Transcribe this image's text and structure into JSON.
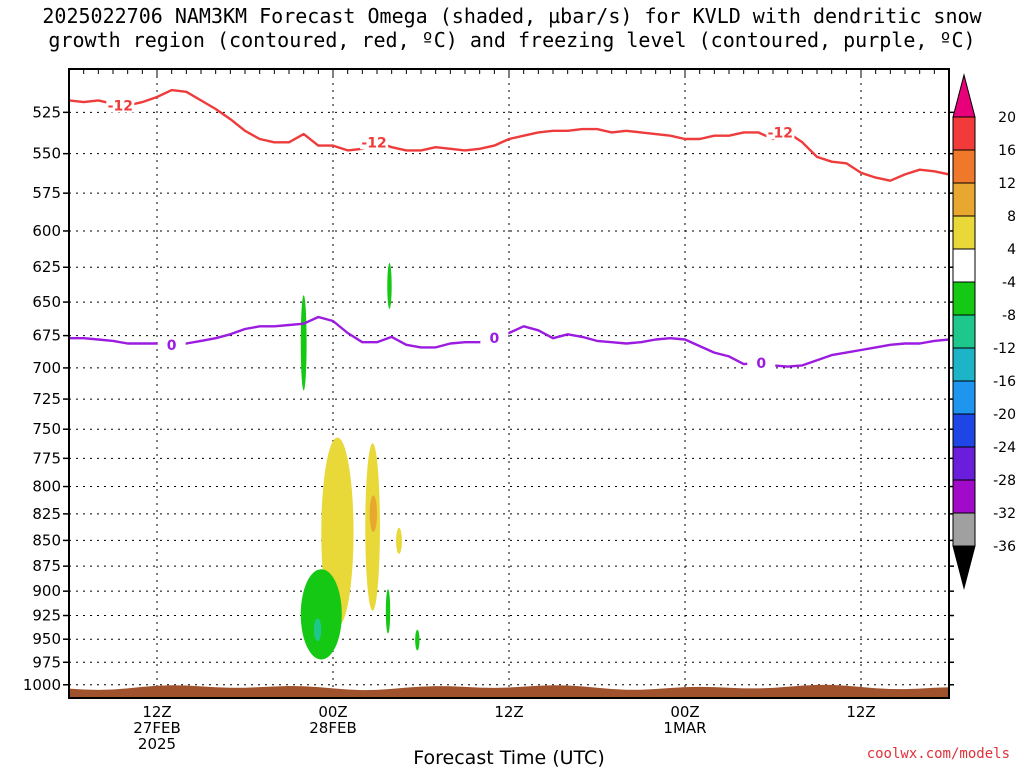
{
  "title": {
    "line1": "2025022706 NAM3KM Forecast Omega (shaded, µbar/s) for KVLD with dendritic snow",
    "line2": "growth region (contoured, red, ºC) and freezing level (contoured, purple, ºC)"
  },
  "credit": "coolwx.com/models",
  "chart_data": {
    "type": "heatmap",
    "title": "2025022706 NAM3KM Forecast Omega (shaded, µbar/s) for KVLD with dendritic snow growth region (contoured, red, ºC) and freezing level (contoured, purple, ºC)",
    "xlabel": "Forecast Time (UTC)",
    "ylabel": "",
    "x_range_hours": [
      0,
      60
    ],
    "x_ticks": [
      {
        "hour": 6,
        "label": [
          "12Z",
          "27FEB",
          "2025"
        ]
      },
      {
        "hour": 18,
        "label": [
          "00Z",
          "28FEB"
        ]
      },
      {
        "hour": 30,
        "label": [
          "12Z"
        ]
      },
      {
        "hour": 42,
        "label": [
          "00Z",
          "1MAR"
        ]
      },
      {
        "hour": 54,
        "label": [
          "12Z"
        ]
      }
    ],
    "y_axis": {
      "scale": "log",
      "inverted": true,
      "range_mb": [
        500,
        1015
      ]
    },
    "y_ticks": [
      525,
      550,
      575,
      600,
      625,
      650,
      675,
      700,
      725,
      750,
      775,
      800,
      825,
      850,
      875,
      900,
      925,
      950,
      975,
      1000
    ],
    "colorbar": {
      "labels": [
        "20",
        "16",
        "12",
        "8",
        "4",
        "-4",
        "-8",
        "-12",
        "-16",
        "-20",
        "-24",
        "-28",
        "-32",
        "-36"
      ],
      "colors": [
        "#e8007a",
        "#f23a3a",
        "#f0782a",
        "#e8a830",
        "#e8d838",
        "#ffffff",
        "#14c814",
        "#1ec88c",
        "#1eb4c8",
        "#1e96f0",
        "#1e46e6",
        "#6a1edc",
        "#a00ac8",
        "#a0a0a0",
        "#000000"
      ]
    },
    "series": [
      {
        "name": "-12",
        "color": "#ee3b3b",
        "hours": [
          0,
          1,
          2,
          3,
          4,
          5,
          6,
          7,
          8,
          9,
          10,
          11,
          12,
          13,
          14,
          15,
          16,
          17,
          18,
          19,
          20,
          21,
          22,
          23,
          24,
          25,
          26,
          27,
          28,
          29,
          30,
          31,
          32,
          33,
          34,
          35,
          36,
          37,
          38,
          39,
          40,
          41,
          42,
          43,
          44,
          45,
          46,
          47,
          48,
          49,
          50,
          51,
          52,
          53,
          54,
          55,
          56,
          57,
          58,
          59,
          60
        ],
        "pressure_mb": [
          518,
          519,
          518,
          520,
          521,
          519,
          516,
          512,
          513,
          518,
          523,
          529,
          536,
          541,
          543,
          543,
          538,
          545,
          545,
          548,
          547,
          543,
          546,
          548,
          548,
          546,
          547,
          548,
          547,
          545,
          541,
          539,
          537,
          536,
          536,
          535,
          535,
          537,
          536,
          537,
          538,
          539,
          541,
          541,
          539,
          539,
          537,
          537,
          541,
          537,
          543,
          552,
          555,
          556,
          562,
          565,
          567,
          563,
          560,
          561,
          563
        ]
      },
      {
        "name": "0",
        "color": "#9b1be0",
        "hours": [
          0,
          1,
          2,
          3,
          4,
          5,
          6,
          7,
          8,
          9,
          10,
          11,
          12,
          13,
          14,
          15,
          16,
          17,
          18,
          19,
          20,
          21,
          22,
          23,
          24,
          25,
          26,
          27,
          28,
          29,
          30,
          31,
          32,
          33,
          34,
          35,
          36,
          37,
          38,
          39,
          40,
          41,
          42,
          43,
          44,
          45,
          46,
          47,
          48,
          49,
          50,
          51,
          52,
          53,
          54,
          55,
          56,
          57,
          58,
          59,
          60
        ],
        "pressure_mb": [
          677,
          677,
          678,
          679,
          681,
          681,
          681,
          682,
          681,
          679,
          677,
          674,
          670,
          668,
          668,
          667,
          666,
          661,
          664,
          673,
          680,
          680,
          676,
          682,
          684,
          684,
          681,
          680,
          680,
          677,
          673,
          668,
          671,
          677,
          674,
          676,
          679,
          680,
          681,
          680,
          678,
          677,
          678,
          683,
          688,
          691,
          697,
          696,
          698,
          699,
          698,
          694,
          690,
          688,
          686,
          684,
          682,
          681,
          681,
          679,
          678
        ]
      }
    ],
    "contour_labels": [
      {
        "series": "-12",
        "text": "-12"
      },
      {
        "series": "0",
        "text": "0"
      }
    ],
    "shaded_regions": [
      {
        "category": "4 to 8",
        "color": "#e8d838",
        "hour_range": [
          17.2,
          19.4
        ],
        "pressure_mb": [
          757,
          937
        ]
      },
      {
        "category": "4 to 8",
        "color": "#e8d838",
        "hour_range": [
          20.2,
          21.2
        ],
        "pressure_mb": [
          762,
          920
        ]
      },
      {
        "category": "8 to 12",
        "color": "#e8a830",
        "hour_range": [
          20.5,
          21.0
        ],
        "pressure_mb": [
          808,
          842
        ]
      },
      {
        "category": "4 to 8",
        "color": "#e8d838",
        "hour_range": [
          22.3,
          22.7
        ],
        "pressure_mb": [
          838,
          863
        ]
      },
      {
        "category": "-8 to -4",
        "color": "#14c814",
        "hour_range": [
          15.8,
          18.6
        ],
        "pressure_mb": [
          878,
          972
        ]
      },
      {
        "category": "-12 to -8",
        "color": "#1ec88c",
        "hour_range": [
          16.7,
          17.2
        ],
        "pressure_mb": [
          928,
          952
        ]
      },
      {
        "category": "-8 to -4",
        "color": "#14c814",
        "hour_range": [
          15.8,
          16.2
        ],
        "pressure_mb": [
          645,
          718
        ]
      },
      {
        "category": "-8 to -4",
        "color": "#14c814",
        "hour_range": [
          21.7,
          22.0
        ],
        "pressure_mb": [
          622,
          655
        ]
      },
      {
        "category": "-8 to -4",
        "color": "#14c814",
        "hour_range": [
          21.6,
          21.9
        ],
        "pressure_mb": [
          898,
          944
        ]
      },
      {
        "category": "-8 to -4",
        "color": "#14c814",
        "hour_range": [
          23.6,
          23.9
        ],
        "pressure_mb": [
          940,
          962
        ]
      }
    ],
    "terrain": {
      "color": "#a0522d",
      "top_pressure_mb": 1003
    }
  }
}
